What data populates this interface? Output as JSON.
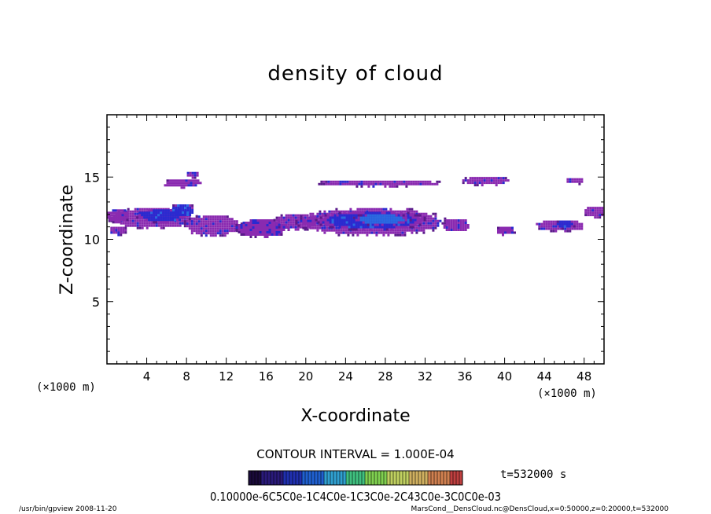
{
  "chart_data": {
    "type": "heatmap",
    "title": "density of cloud",
    "xlabel": "X-coordinate",
    "ylabel": "Z-coordinate",
    "x_unit": "(×1000 m)",
    "xlim": [
      0,
      50
    ],
    "ylim": [
      0,
      20
    ],
    "x_ticks": [
      "4",
      "8",
      "12",
      "16",
      "20",
      "24",
      "28",
      "32",
      "36",
      "40",
      "44",
      "48"
    ],
    "y_ticks": [
      "5",
      "10",
      "15"
    ],
    "contour_interval_label": "CONTOUR INTERVAL = 1.000E-04",
    "time_label": "t=532000 s",
    "colorbar_labels_text": "0.10000e-6C5C0e-1C4C0e-1C3C0e-2C43C0e-3C0C0e-03",
    "footer_left": "/usr/bin/gpview   2008-11-20",
    "footer_right": "MarsCond__DensCloud.nc@DensCloud,x=0:50000,z=0:20000,t=532000",
    "colorbar_colors": [
      "#1a0a3a",
      "#2a1a7a",
      "#2030b0",
      "#2060d0",
      "#30a0d0",
      "#40c080",
      "#80d050",
      "#c0d060",
      "#d0b060",
      "#d08050",
      "#c04040"
    ],
    "blobs": [
      {
        "x": 4.5,
        "z": 11.8,
        "rx": 4.6,
        "rz": 0.9,
        "level": 1
      },
      {
        "x": 5.5,
        "z": 12.0,
        "rx": 2.8,
        "rz": 0.6,
        "level": 2
      },
      {
        "x": 7.5,
        "z": 12.4,
        "rx": 1.4,
        "rz": 0.6,
        "level": 2
      },
      {
        "x": 1.0,
        "z": 12.0,
        "rx": 1.2,
        "rz": 0.6,
        "level": 1
      },
      {
        "x": 1.0,
        "z": 10.8,
        "rx": 0.9,
        "rz": 0.4,
        "level": 1
      },
      {
        "x": 10.5,
        "z": 11.2,
        "rx": 3.0,
        "rz": 0.9,
        "level": 1
      },
      {
        "x": 15.5,
        "z": 11.0,
        "rx": 2.8,
        "rz": 0.8,
        "level": 1
      },
      {
        "x": 19.0,
        "z": 11.5,
        "rx": 2.5,
        "rz": 0.7,
        "level": 1
      },
      {
        "x": 26.5,
        "z": 11.5,
        "rx": 7.8,
        "rz": 1.2,
        "level": 1
      },
      {
        "x": 26.5,
        "z": 11.6,
        "rx": 5.8,
        "rz": 0.8,
        "level": 2
      },
      {
        "x": 27.5,
        "z": 11.7,
        "rx": 3.0,
        "rz": 0.5,
        "level": 3
      },
      {
        "x": 35.0,
        "z": 11.2,
        "rx": 1.4,
        "rz": 0.6,
        "level": 1
      },
      {
        "x": 40.0,
        "z": 10.8,
        "rx": 1.0,
        "rz": 0.4,
        "level": 1
      },
      {
        "x": 45.5,
        "z": 11.2,
        "rx": 2.6,
        "rz": 0.5,
        "level": 1
      },
      {
        "x": 46.0,
        "z": 11.3,
        "rx": 1.0,
        "rz": 0.4,
        "level": 2
      },
      {
        "x": 49.0,
        "z": 12.3,
        "rx": 1.2,
        "rz": 0.5,
        "level": 1
      },
      {
        "x": 7.5,
        "z": 14.6,
        "rx": 2.0,
        "rz": 0.4,
        "level": 1
      },
      {
        "x": 8.5,
        "z": 15.3,
        "rx": 0.7,
        "rz": 0.3,
        "level": 1
      },
      {
        "x": 27.5,
        "z": 14.6,
        "rx": 6.5,
        "rz": 0.3,
        "level": 1
      },
      {
        "x": 38.0,
        "z": 14.8,
        "rx": 2.5,
        "rz": 0.4,
        "level": 1
      },
      {
        "x": 47.0,
        "z": 14.8,
        "rx": 1.0,
        "rz": 0.3,
        "level": 1
      }
    ]
  }
}
